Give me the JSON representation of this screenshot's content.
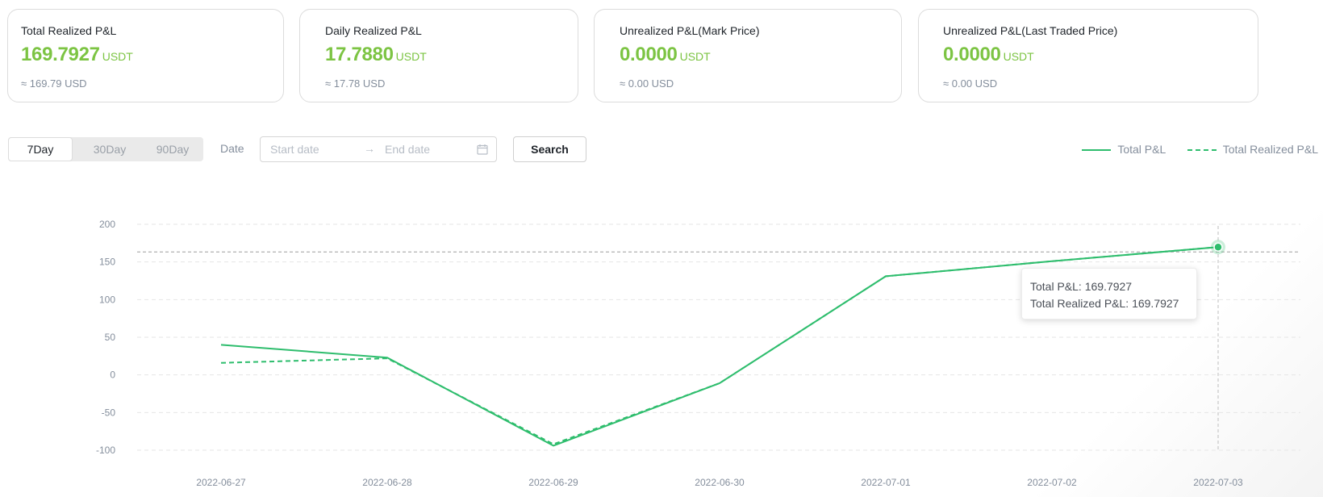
{
  "cards": [
    {
      "title": "Total Realized P&L",
      "value": "169.7927",
      "unit": "USDT",
      "approx": "≈ 169.79 USD"
    },
    {
      "title": "Daily Realized P&L",
      "value": "17.7880",
      "unit": "USDT",
      "approx": "≈ 17.78 USD"
    },
    {
      "title": "Unrealized P&L(Mark Price)",
      "value": "0.0000",
      "unit": "USDT",
      "approx": "≈ 0.00 USD"
    },
    {
      "title": "Unrealized P&L(Last Traded Price)",
      "value": "0.0000",
      "unit": "USDT",
      "approx": "≈ 0.00 USD"
    }
  ],
  "controls": {
    "ranges": [
      "7Day",
      "30Day",
      "90Day"
    ],
    "active_range": "7Day",
    "date_label": "Date",
    "start_placeholder": "Start date",
    "end_placeholder": "End date",
    "arrow": "→",
    "search_label": "Search"
  },
  "legend": {
    "total_pnl": "Total P&L",
    "total_realized_pnl": "Total Realized P&L"
  },
  "tooltip": {
    "line1": "Total P&L:  169.7927",
    "line2": "Total Realized P&L:  169.7927"
  },
  "colors": {
    "accent_green": "#7cc443",
    "line_green": "#2ebd6d"
  },
  "chart_data": {
    "type": "line",
    "x": [
      "2022-06-27",
      "2022-06-28",
      "2022-06-29",
      "2022-06-30",
      "2022-07-01",
      "2022-07-02",
      "2022-07-03"
    ],
    "series": [
      {
        "name": "Total P&L",
        "style": "solid",
        "values": [
          40,
          23,
          -94,
          -11,
          131,
          151,
          169.7927
        ]
      },
      {
        "name": "Total Realized P&L",
        "style": "dashed",
        "values": [
          16,
          22,
          -92,
          -11,
          131,
          151,
          169.7927
        ]
      }
    ],
    "yticks": [
      200,
      150,
      100,
      50,
      0,
      -50,
      -100
    ],
    "ylim": [
      -100,
      200
    ],
    "grid": true,
    "legend_position": "top-right",
    "highlight_index": 6
  }
}
